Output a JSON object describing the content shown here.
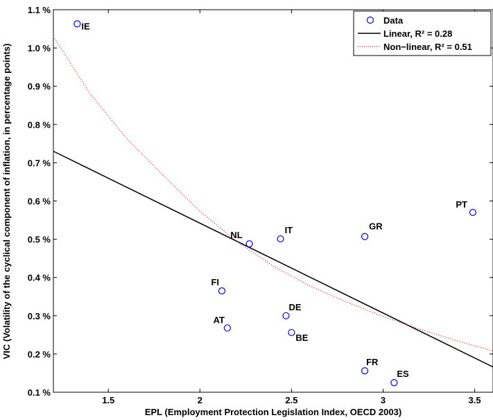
{
  "chart_data": {
    "type": "scatter",
    "xlabel": "EPL (Employment Protection Legislation Index, OECD 2003)",
    "ylabel": "VIC (Volatility of the cyclical component of inflation, in percentage points)",
    "xlim": [
      1.2,
      3.6
    ],
    "ylim": [
      0.1,
      1.1
    ],
    "xticks": [
      1.5,
      2,
      2.5,
      3,
      3.5
    ],
    "xtick_labels": [
      "1.5",
      "2",
      "2.5",
      "3",
      "3.5"
    ],
    "yticks": [
      0.1,
      0.2,
      0.3,
      0.4,
      0.5,
      0.6,
      0.7,
      0.8,
      0.9,
      1.0,
      1.1
    ],
    "ytick_labels": [
      "0.1 %",
      "0.2 %",
      "0.3 %",
      "0.4 %",
      "0.5 %",
      "0.6 %",
      "0.7 %",
      "0.8 %",
      "0.9 %",
      "1.0 %",
      "1.1 %"
    ],
    "grid": false,
    "legend_position": "top-right",
    "points": [
      {
        "label": "IE",
        "x": 1.33,
        "y": 1.063
      },
      {
        "label": "NL",
        "x": 2.27,
        "y": 0.488
      },
      {
        "label": "IT",
        "x": 2.44,
        "y": 0.501
      },
      {
        "label": "GR",
        "x": 2.9,
        "y": 0.507
      },
      {
        "label": "PT",
        "x": 3.49,
        "y": 0.57
      },
      {
        "label": "FI",
        "x": 2.12,
        "y": 0.365
      },
      {
        "label": "AT",
        "x": 2.15,
        "y": 0.268
      },
      {
        "label": "DE",
        "x": 2.47,
        "y": 0.3
      },
      {
        "label": "BE",
        "x": 2.5,
        "y": 0.256
      },
      {
        "label": "FR",
        "x": 2.9,
        "y": 0.156
      },
      {
        "label": "ES",
        "x": 3.06,
        "y": 0.125
      }
    ],
    "series": [
      {
        "name": "Data",
        "type": "scatter",
        "color": "#0000ff"
      },
      {
        "name": "Linear, R² = 0.28",
        "type": "line",
        "color": "#000000",
        "x": [
          1.2,
          3.6
        ],
        "y": [
          0.73,
          0.166
        ]
      },
      {
        "name": "Non−linear, R² = 0.51",
        "type": "dotted-curve",
        "color": "#ff0000",
        "x": [
          1.2,
          1.4,
          1.6,
          1.8,
          2.0,
          2.2,
          2.4,
          2.6,
          2.8,
          3.0,
          3.2,
          3.4,
          3.6
        ],
        "y": [
          1.03,
          0.881,
          0.763,
          0.667,
          0.573,
          0.495,
          0.43,
          0.378,
          0.336,
          0.298,
          0.265,
          0.235,
          0.208
        ]
      }
    ]
  }
}
